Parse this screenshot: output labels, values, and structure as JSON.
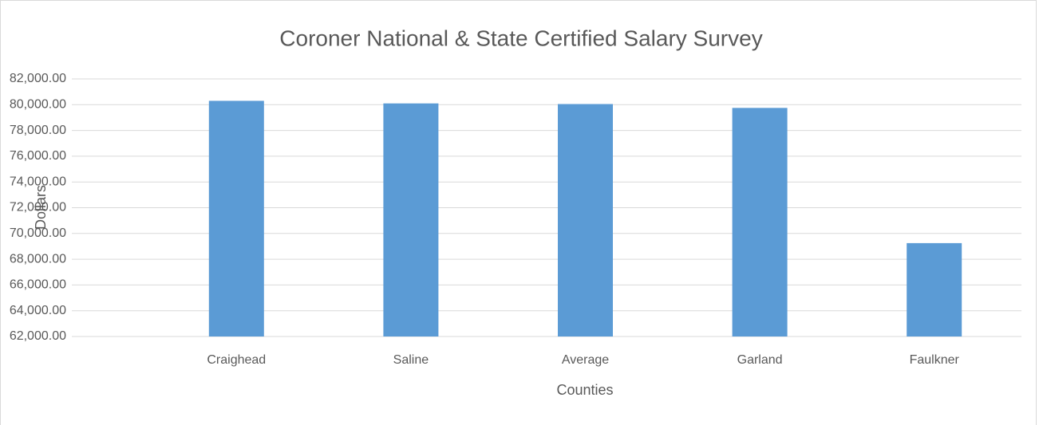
{
  "chart_data": {
    "type": "bar",
    "title": "Coroner National & State Certified Salary Survey",
    "x_label": "Counties",
    "y_label": "Dollars",
    "categories": [
      "Craighead",
      "Saline",
      "Average",
      "Garland",
      "Faulkner"
    ],
    "values": [
      80300,
      80100,
      80050,
      79750,
      69250
    ],
    "color": "#5b9bd5",
    "ylim": [
      62000,
      82000
    ],
    "yticks": [
      {
        "value": 62000,
        "label": "62,000.00"
      },
      {
        "value": 64000,
        "label": "64,000.00"
      },
      {
        "value": 66000,
        "label": "66,000.00"
      },
      {
        "value": 68000,
        "label": "68,000.00"
      },
      {
        "value": 70000,
        "label": "70,000.00"
      },
      {
        "value": 72000,
        "label": "72,000.00"
      },
      {
        "value": 74000,
        "label": "74,000.00"
      },
      {
        "value": 76000,
        "label": "76,000.00"
      },
      {
        "value": 78000,
        "label": "78,000.00"
      },
      {
        "value": 80000,
        "label": "80,000.00"
      },
      {
        "value": 82000,
        "label": "82,000.00"
      }
    ],
    "grid": true
  }
}
